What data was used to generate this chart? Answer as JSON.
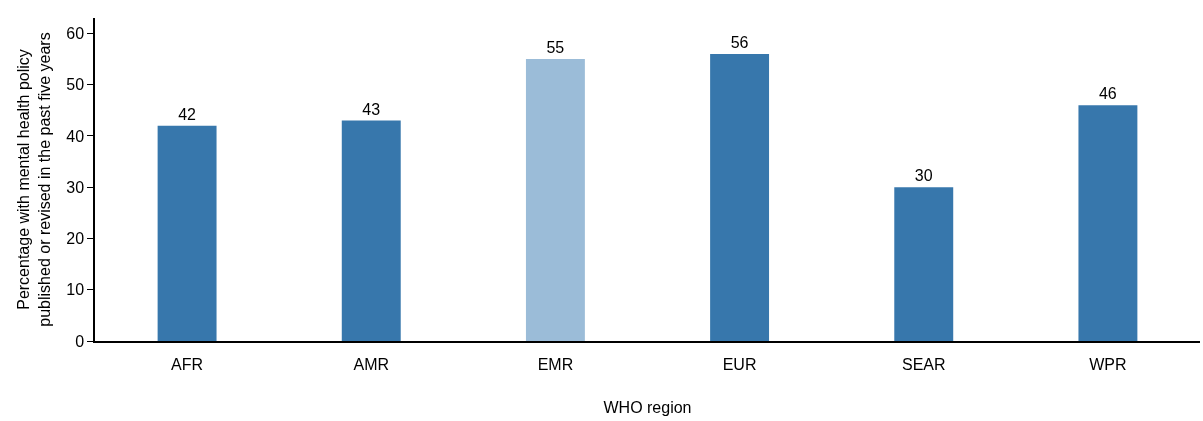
{
  "chart_data": {
    "type": "bar",
    "xlabel": "WHO region",
    "ylabel": "Percentage with mental health policy\npublished or revised in the past five years",
    "categories": [
      "AFR",
      "AMR",
      "EMR",
      "EUR",
      "SEAR",
      "WPR"
    ],
    "values": [
      42,
      43,
      55,
      56,
      30,
      46
    ],
    "colors": [
      "#3777ac",
      "#3777ac",
      "#9bbcd8",
      "#3777ac",
      "#3777ac",
      "#3777ac"
    ],
    "ylim": [
      0,
      63
    ],
    "yticks": [
      0,
      10,
      20,
      30,
      40,
      50,
      60
    ],
    "grid": false,
    "data_labels": true
  }
}
